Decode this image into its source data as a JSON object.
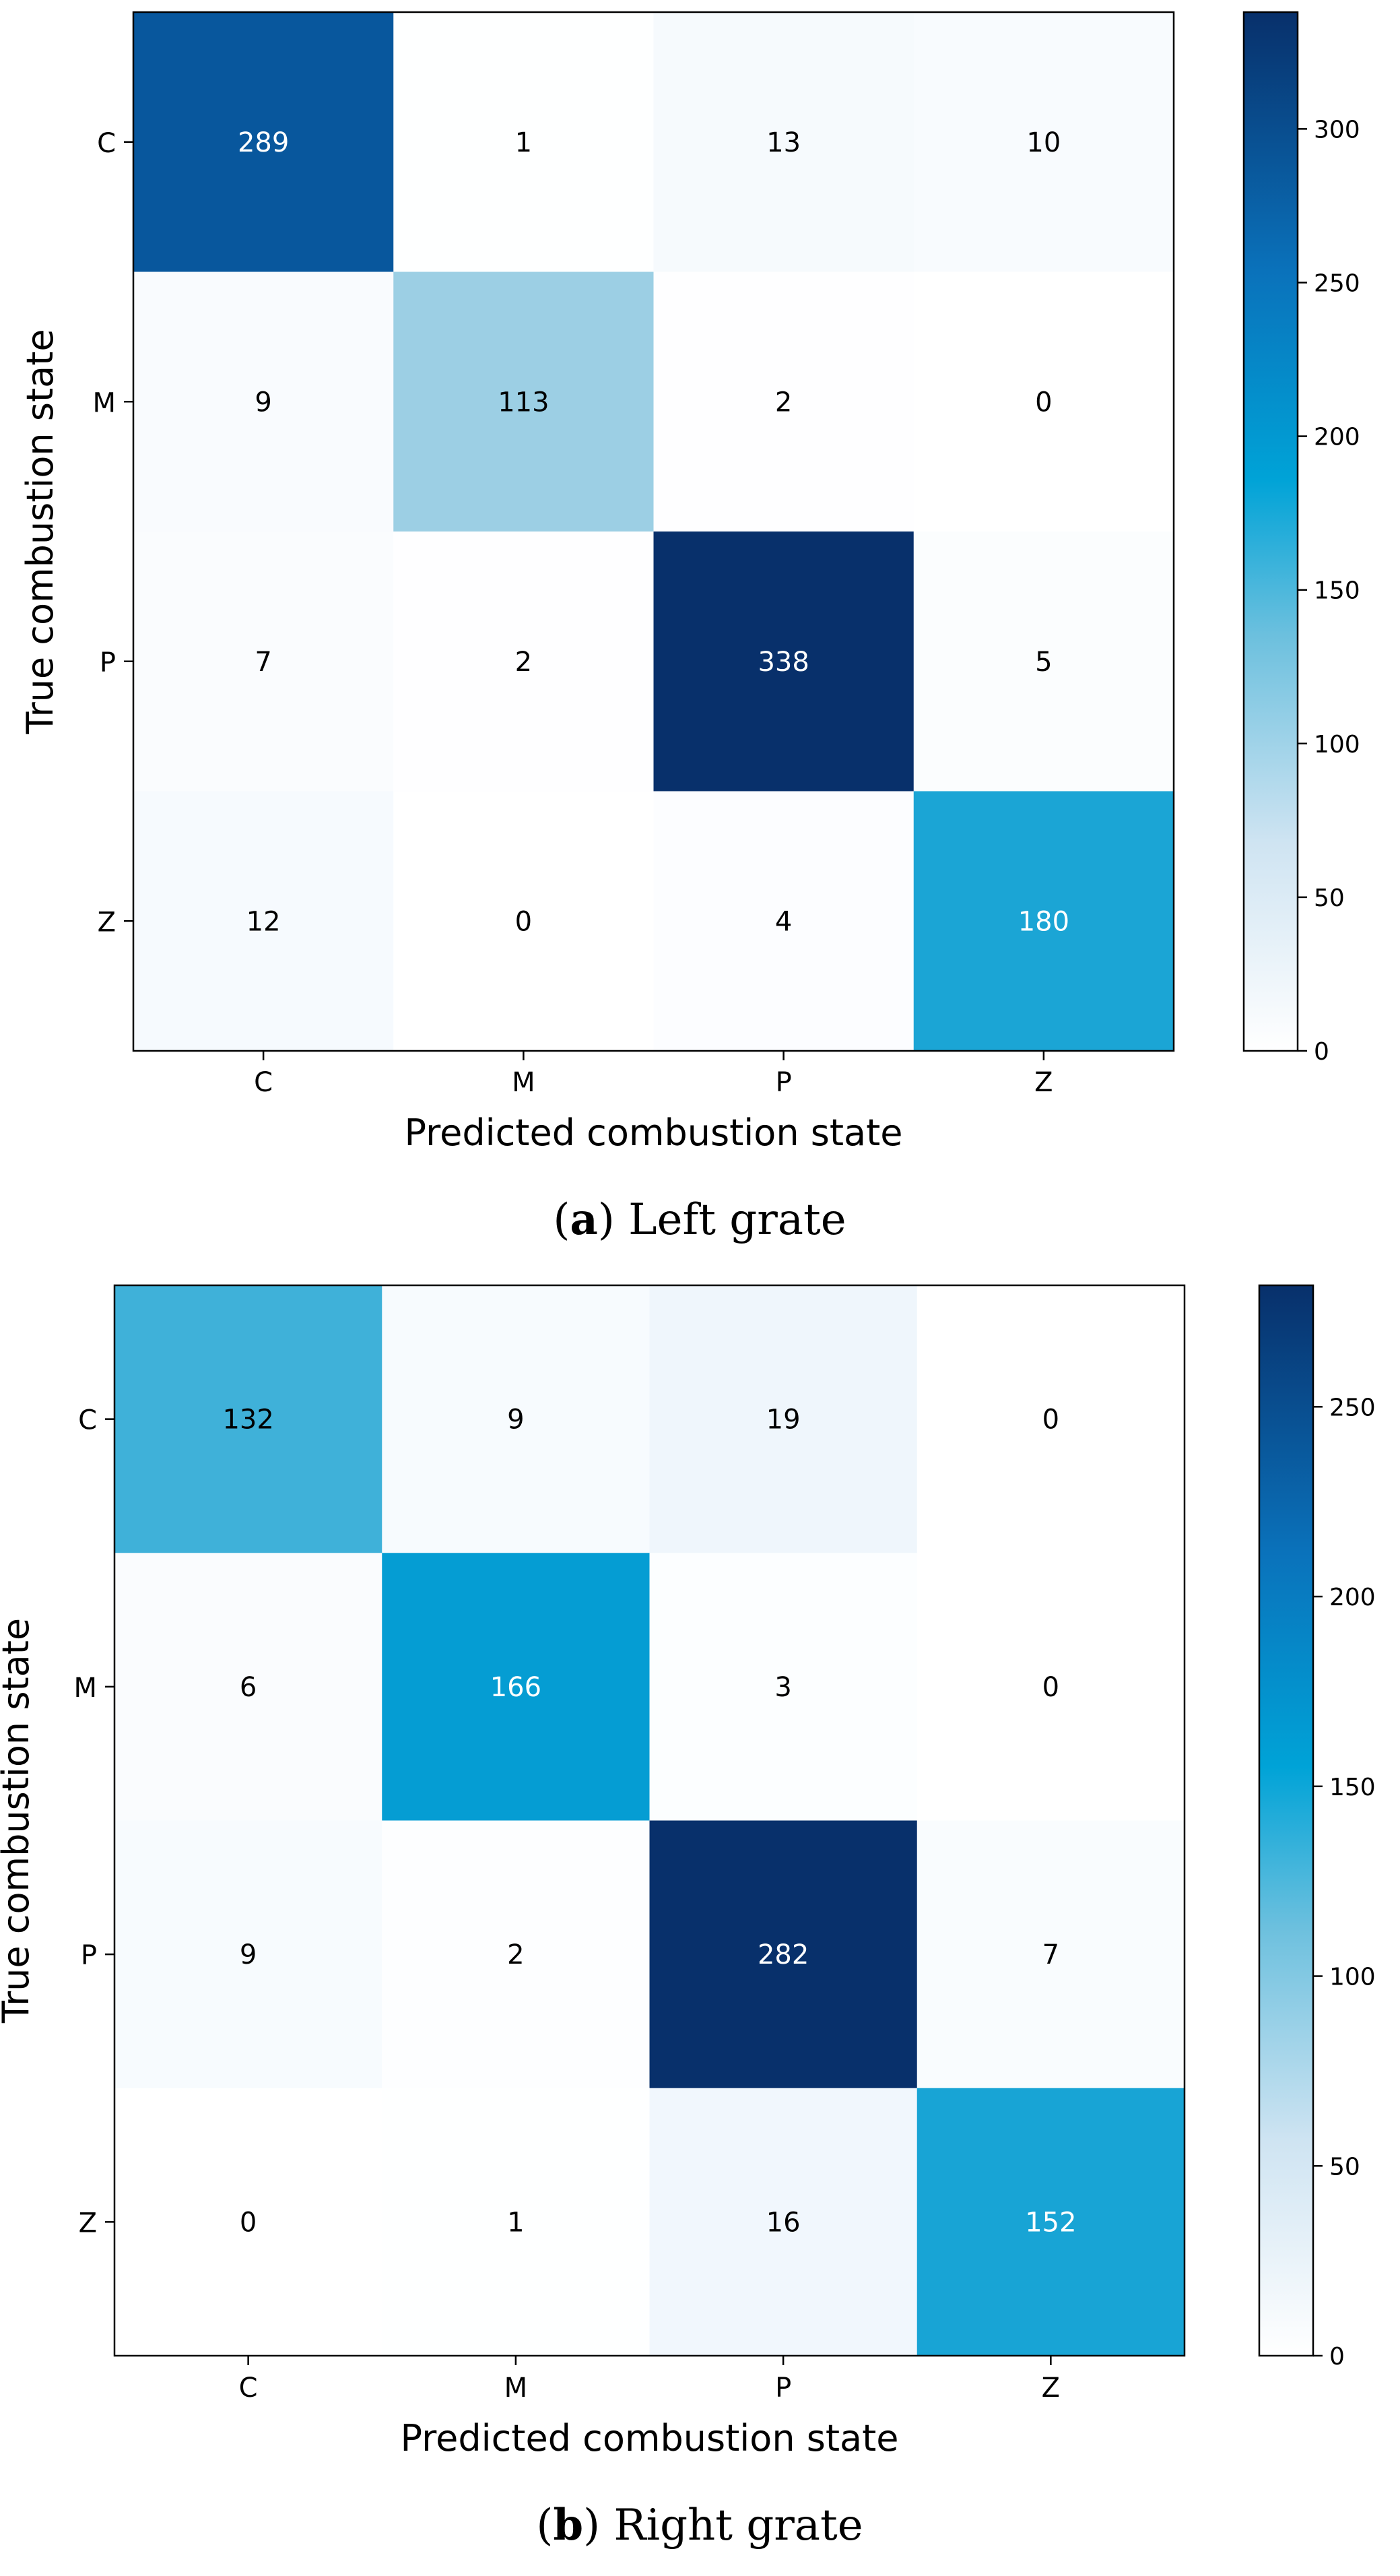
{
  "chart_data": [
    {
      "type": "heatmap",
      "caption_letter": "a",
      "caption_text": "Left grate",
      "xlabel": "Predicted combustion state",
      "ylabel": "True combustion state",
      "categories": [
        "C",
        "M",
        "P",
        "Z"
      ],
      "matrix": [
        [
          289,
          1,
          13,
          10
        ],
        [
          9,
          113,
          2,
          0
        ],
        [
          7,
          2,
          338,
          5
        ],
        [
          12,
          0,
          4,
          180
        ]
      ],
      "colorbar_range": [
        0,
        338
      ],
      "colorbar_ticks": [
        "0",
        "50",
        "100",
        "150",
        "200",
        "250",
        "300"
      ]
    },
    {
      "type": "heatmap",
      "caption_letter": "b",
      "caption_text": "Right grate",
      "xlabel": "Predicted combustion state",
      "ylabel": "True combustion state",
      "categories": [
        "C",
        "M",
        "P",
        "Z"
      ],
      "matrix": [
        [
          132,
          9,
          19,
          0
        ],
        [
          6,
          166,
          3,
          0
        ],
        [
          9,
          2,
          282,
          7
        ],
        [
          0,
          1,
          16,
          152
        ]
      ],
      "colorbar_range": [
        0,
        282
      ],
      "colorbar_ticks": [
        "0",
        "50",
        "100",
        "150",
        "200",
        "250"
      ]
    }
  ]
}
